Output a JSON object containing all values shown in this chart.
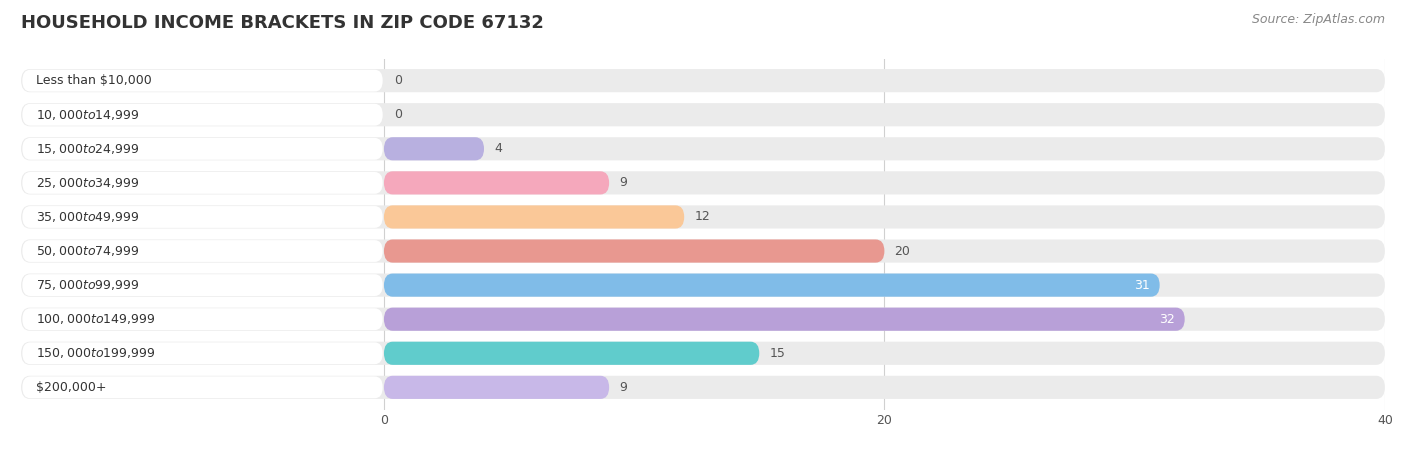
{
  "title": "HOUSEHOLD INCOME BRACKETS IN ZIP CODE 67132",
  "source": "Source: ZipAtlas.com",
  "categories": [
    "Less than $10,000",
    "$10,000 to $14,999",
    "$15,000 to $24,999",
    "$25,000 to $34,999",
    "$35,000 to $49,999",
    "$50,000 to $74,999",
    "$75,000 to $99,999",
    "$100,000 to $149,999",
    "$150,000 to $199,999",
    "$200,000+"
  ],
  "values": [
    0,
    0,
    4,
    9,
    12,
    20,
    31,
    32,
    15,
    9
  ],
  "bar_colors": [
    "#c9b0d8",
    "#72cec0",
    "#b8b0e0",
    "#f5a8bc",
    "#fac898",
    "#e89890",
    "#80bce8",
    "#b8a0d8",
    "#60cccc",
    "#c8b8e8"
  ],
  "xlim": [
    0,
    40
  ],
  "xticks": [
    0,
    20,
    40
  ],
  "background_color": "#ffffff",
  "bar_bg_color": "#ebebeb",
  "title_fontsize": 13,
  "source_fontsize": 9,
  "label_fontsize": 9,
  "value_fontsize": 9
}
